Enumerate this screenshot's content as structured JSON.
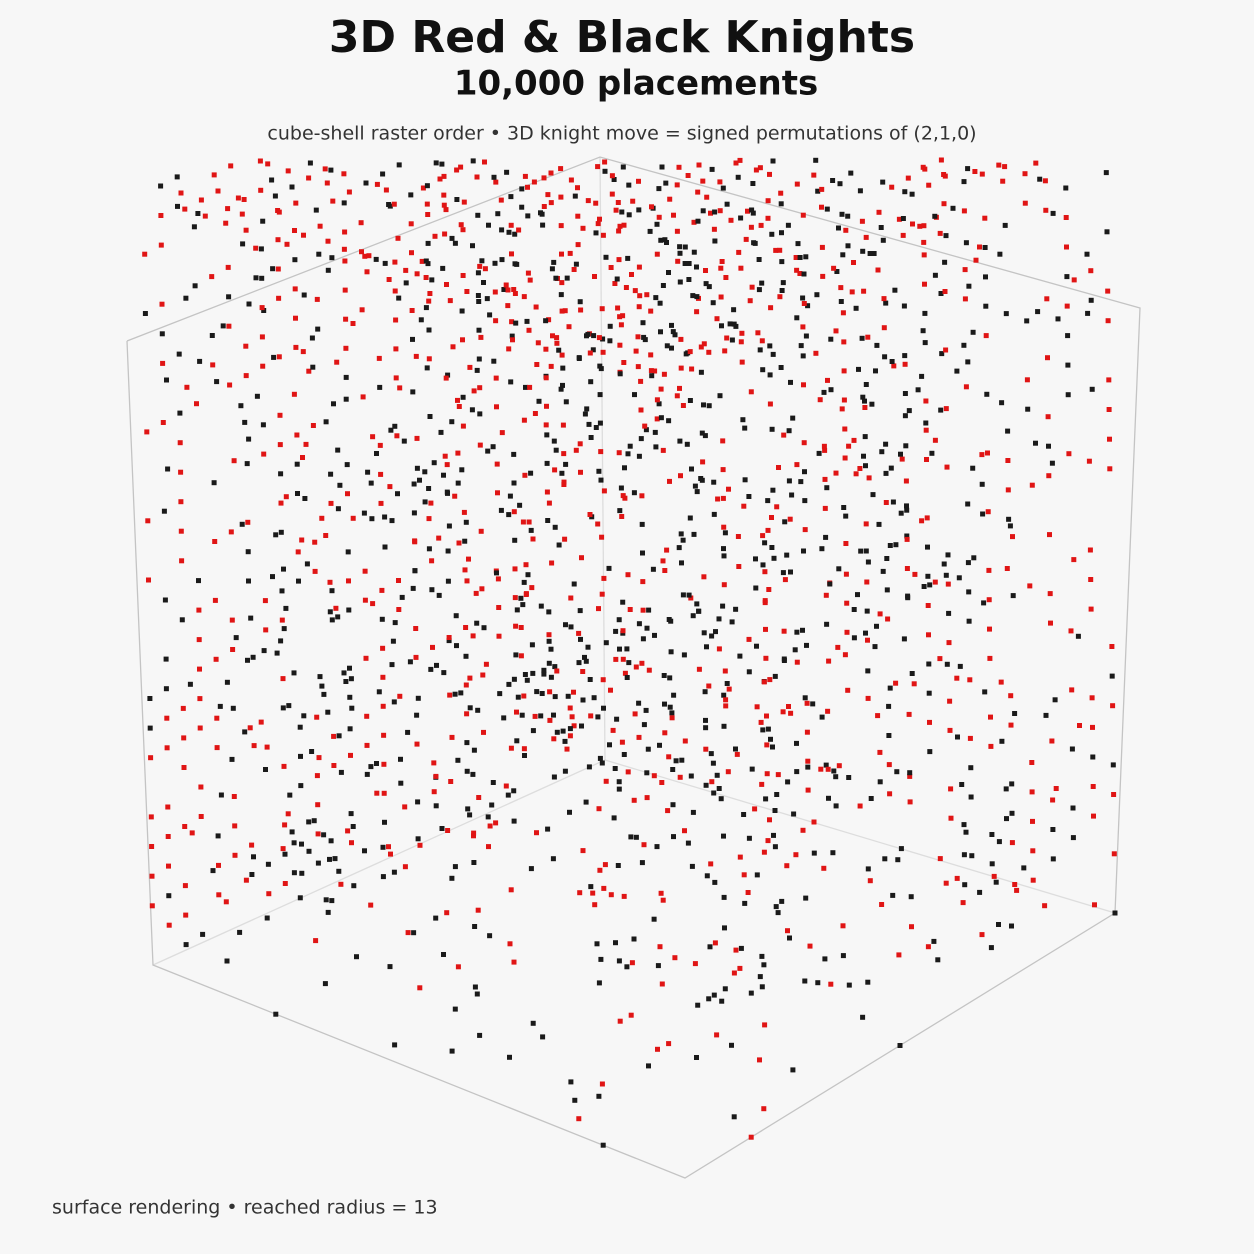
{
  "header": {
    "title": "3D Red & Black Knights",
    "subtitle": "10,000 placements",
    "caption": "cube-shell raster order • 3D knight move = signed permutations of (2,1,0)"
  },
  "footer": {
    "note": "surface rendering • reached radius = 13"
  }
}
